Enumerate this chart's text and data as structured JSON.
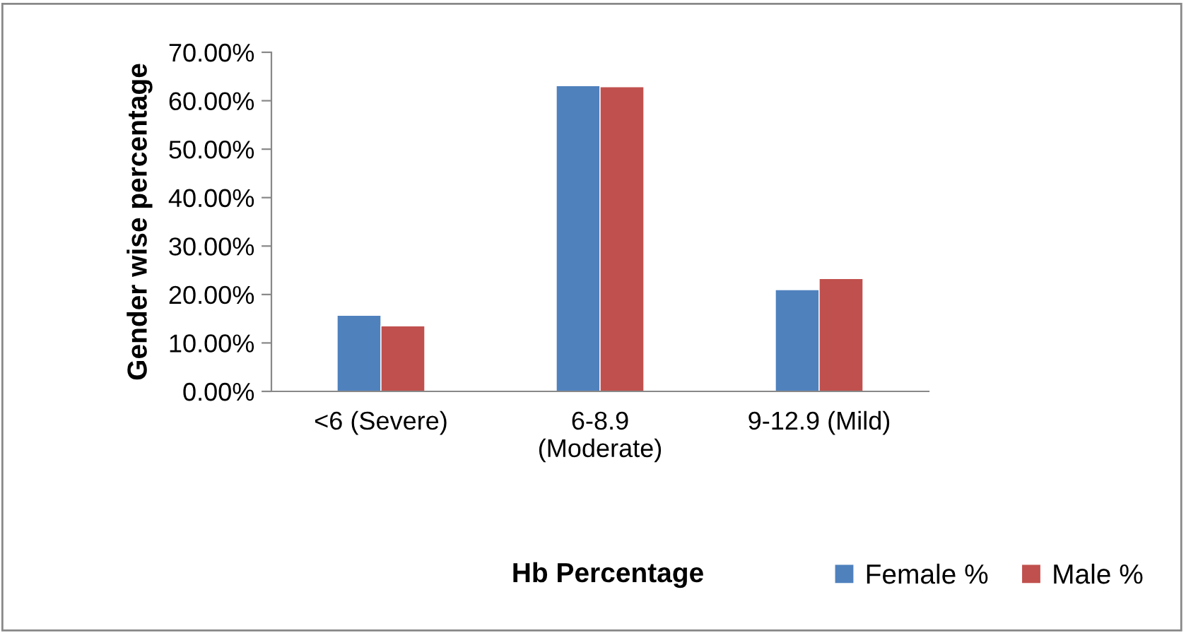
{
  "chart_data": {
    "type": "bar",
    "xlabel": "Hb Percentage",
    "ylabel": "Gender wise percentage",
    "categories": [
      "<6 (Severe)",
      "6-8.9\n(Moderate)",
      "9-12.9 (Mild)"
    ],
    "series": [
      {
        "name": "Female %",
        "color": "#4f81bd",
        "values": [
          15.7,
          63.1,
          21.0
        ]
      },
      {
        "name": "Male %",
        "color": "#c0504d",
        "values": [
          13.5,
          62.9,
          23.3
        ]
      }
    ],
    "ylim": [
      0,
      70
    ],
    "yticks": [
      {
        "value": 0,
        "label": "0.00%"
      },
      {
        "value": 10,
        "label": "10.00%"
      },
      {
        "value": 20,
        "label": "20.00%"
      },
      {
        "value": 30,
        "label": "30.00%"
      },
      {
        "value": 40,
        "label": "40.00%"
      },
      {
        "value": 50,
        "label": "50.00%"
      },
      {
        "value": 60,
        "label": "60.00%"
      },
      {
        "value": 70,
        "label": "70.00%"
      }
    ],
    "grid": false,
    "legend": "bottom right"
  }
}
